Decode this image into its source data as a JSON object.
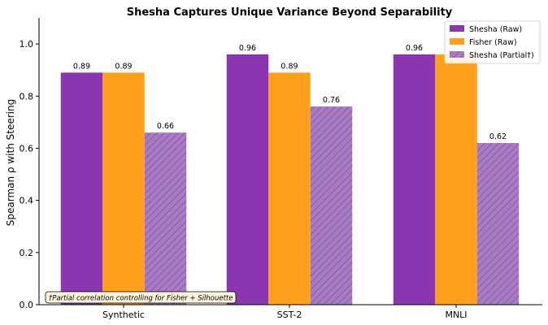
{
  "chart_data": {
    "type": "bar",
    "title": "Shesha Captures Unique Variance Beyond Separability",
    "xlabel": "",
    "ylabel": "Spearman ρ with Steering",
    "ylim": [
      0,
      1.1
    ],
    "yticks": [
      "0.0",
      "0.2",
      "0.4",
      "0.6",
      "0.8",
      "1.0"
    ],
    "categories": [
      "Synthetic",
      "SST-2",
      "MNLI"
    ],
    "series": [
      {
        "name": "Shesha (Raw)",
        "values": [
          0.89,
          0.96,
          0.96
        ],
        "labels": [
          "0.89",
          "0.96",
          "0.96"
        ],
        "color": "#8a36b0",
        "hatch": false
      },
      {
        "name": "Fisher (Raw)",
        "values": [
          0.89,
          0.89,
          0.96
        ],
        "labels": [
          "0.89",
          "0.89",
          ""
        ],
        "color": "#ffa01c",
        "hatch": false
      },
      {
        "name": "Shesha (Partial†)",
        "values": [
          0.66,
          0.76,
          0.62
        ],
        "labels": [
          "0.66",
          "0.76",
          "0.62"
        ],
        "color": "#a97bc4",
        "hatch": true,
        "hatch_color": "#7a4f96"
      }
    ],
    "legend_position": "top-right",
    "grid": false,
    "annotation": "†Partial correlation controlling for Fisher + Silhouette"
  }
}
